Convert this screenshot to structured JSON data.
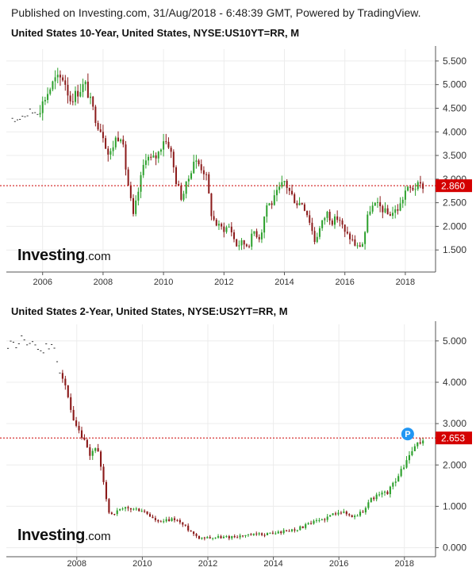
{
  "header": {
    "text": "Published on Investing.com, 31/Aug/2018 - 6:48:39 GMT, Powered by TradingView."
  },
  "watermark": {
    "brand": "Investing",
    ".com": ".com",
    "suffix": ".com"
  },
  "colors": {
    "up": "#2ca02c",
    "down": "#8b1a1a",
    "price_line": "#cc0000",
    "label_bg": "#d40000",
    "grid": "#ececec",
    "axis": "#555555",
    "badge": "#2196f3"
  },
  "chart_data": [
    {
      "type": "candlestick",
      "title": "United States 10-Year, United States, NYSE:US10YT=RR, M",
      "x_ticks": [
        "2006",
        "2008",
        "2010",
        "2012",
        "2014",
        "2016",
        "2018"
      ],
      "y_ticks": [
        "1.500",
        "2.000",
        "2.500",
        "3.000",
        "3.500",
        "4.000",
        "4.500",
        "5.000",
        "5.500"
      ],
      "ylim": [
        1.05,
        5.75
      ],
      "xlim": [
        2004.8,
        2019.0
      ],
      "last_value_label": "2.860",
      "last_value": 2.86,
      "grid": true,
      "x": [
        2005.0,
        2005.3,
        2005.6,
        2005.9,
        2006.1,
        2006.4,
        2006.7,
        2006.9,
        2007.1,
        2007.4,
        2007.6,
        2007.8,
        2008.0,
        2008.2,
        2008.4,
        2008.6,
        2008.8,
        2009.0,
        2009.2,
        2009.4,
        2009.6,
        2009.8,
        2010.0,
        2010.2,
        2010.4,
        2010.6,
        2010.8,
        2011.0,
        2011.2,
        2011.4,
        2011.6,
        2011.8,
        2012.0,
        2012.2,
        2012.4,
        2012.6,
        2012.8,
        2013.0,
        2013.2,
        2013.4,
        2013.6,
        2013.8,
        2014.0,
        2014.2,
        2014.4,
        2014.6,
        2014.8,
        2015.0,
        2015.2,
        2015.4,
        2015.6,
        2015.8,
        2016.0,
        2016.2,
        2016.4,
        2016.6,
        2016.8,
        2017.0,
        2017.2,
        2017.4,
        2017.6,
        2017.8,
        2018.0,
        2018.2,
        2018.4,
        2018.6
      ],
      "close": [
        4.2,
        4.35,
        4.4,
        4.48,
        4.75,
        5.1,
        5.15,
        4.68,
        4.8,
        5.02,
        4.6,
        4.2,
        3.95,
        3.45,
        3.85,
        3.95,
        3.0,
        2.2,
        2.85,
        3.5,
        3.4,
        3.5,
        3.85,
        3.72,
        3.0,
        2.6,
        2.95,
        3.4,
        3.3,
        3.1,
        2.2,
        2.0,
        1.95,
        2.0,
        1.6,
        1.65,
        1.6,
        1.9,
        1.75,
        2.45,
        2.5,
        2.75,
        2.95,
        2.7,
        2.5,
        2.5,
        2.2,
        1.7,
        2.0,
        2.3,
        2.1,
        2.2,
        1.85,
        1.75,
        1.55,
        1.65,
        2.35,
        2.45,
        2.4,
        2.25,
        2.3,
        2.4,
        2.75,
        2.8,
        2.85,
        2.86
      ],
      "volatility_note": "approximate monthly candles"
    },
    {
      "type": "candlestick",
      "title": "United States 2-Year, United States, NYSE:US2YT=RR, M",
      "x_ticks": [
        "2008",
        "2010",
        "2012",
        "2014",
        "2016",
        "2018"
      ],
      "y_ticks": [
        "0.000",
        "1.000",
        "2.000",
        "3.000",
        "4.000",
        "5.000"
      ],
      "ylim": [
        -0.2,
        5.4
      ],
      "xlim": [
        2005.85,
        2018.95
      ],
      "last_value_label": "2.653",
      "last_value": 2.653,
      "badge": "P",
      "grid": true
    }
  ]
}
